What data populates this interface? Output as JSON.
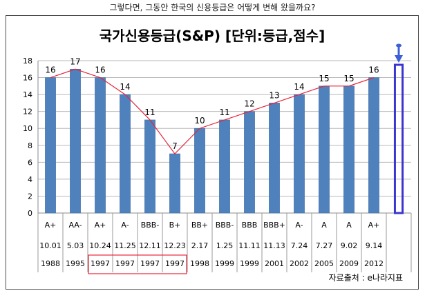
{
  "caption": "그렇다면, 그동안 한국의 신용등급은 어떻게 변해 왔을까요?",
  "source": "자료출처 : e나라지표",
  "chart_data": {
    "type": "bar",
    "title": "국가신용등급(S&P) [단위:등급,점수]",
    "ylim": [
      0,
      18
    ],
    "yticks": [
      0,
      2,
      4,
      6,
      8,
      10,
      12,
      14,
      16,
      18
    ],
    "grid": true,
    "categories": [
      {
        "rating": "A+",
        "date": "10.01",
        "year": "1988"
      },
      {
        "rating": "AA-",
        "date": "5.03",
        "year": "1995"
      },
      {
        "rating": "A+",
        "date": "10.24",
        "year": "1997"
      },
      {
        "rating": "A-",
        "date": "11.25",
        "year": "1997"
      },
      {
        "rating": "BBB-",
        "date": "12.11",
        "year": "1997"
      },
      {
        "rating": "B+",
        "date": "12.23",
        "year": "1997"
      },
      {
        "rating": "BB+",
        "date": "2.17",
        "year": "1998"
      },
      {
        "rating": "BBB-",
        "date": "1.25",
        "year": "1999"
      },
      {
        "rating": "BBB",
        "date": "11.11",
        "year": "1999"
      },
      {
        "rating": "BBB+",
        "date": "11.13",
        "year": "2001"
      },
      {
        "rating": "A-",
        "date": "7.24",
        "year": "2002"
      },
      {
        "rating": "A",
        "date": "7.27",
        "year": "2005"
      },
      {
        "rating": "A",
        "date": "9.02",
        "year": "2009"
      },
      {
        "rating": "A+",
        "date": "9.14",
        "year": "2012"
      }
    ],
    "values": [
      16,
      17,
      16,
      14,
      11,
      7,
      10,
      11,
      12,
      13,
      14,
      15,
      15,
      16
    ],
    "highlight_years_range": [
      2,
      5
    ],
    "projection_value": 18,
    "colors": {
      "bar": "#4f81bd",
      "bar_edge": "#3c6ea5",
      "line": "#e8243a",
      "highlight_box": "#e8243a",
      "projection_bar": "#3b35d0",
      "projection_arrow": "#3b5fd6",
      "grid": "#b8b8b8"
    }
  }
}
